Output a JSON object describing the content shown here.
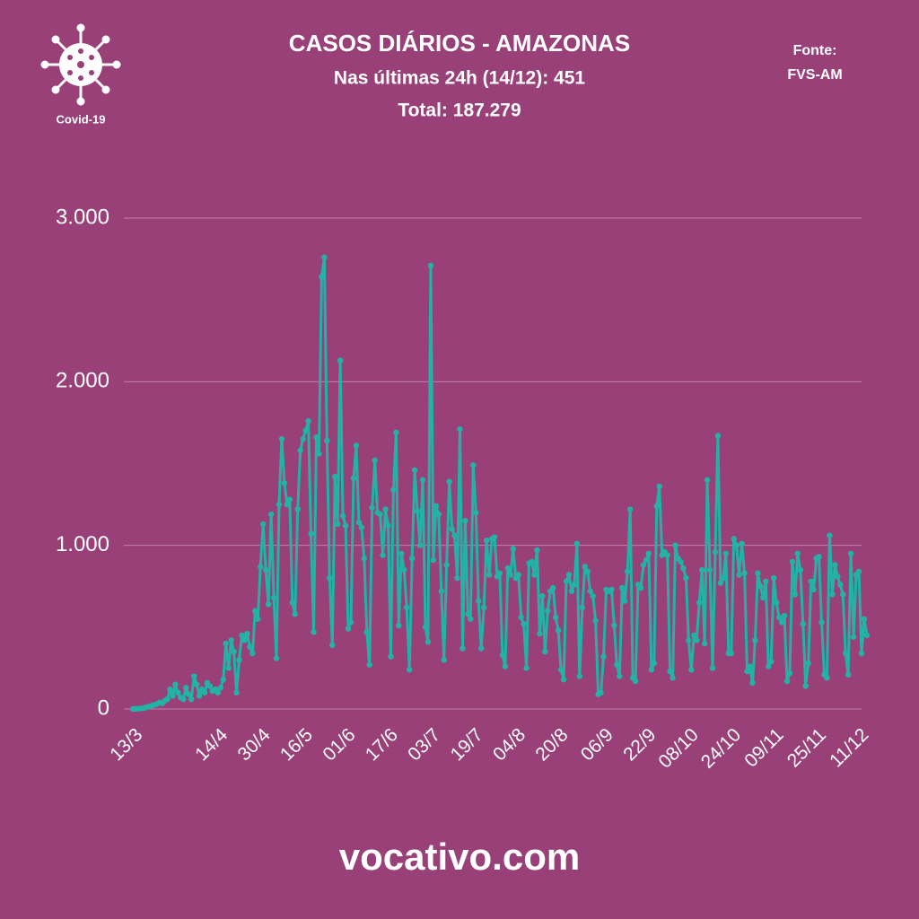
{
  "header": {
    "icon_label": "Covid-19",
    "source_label": "Fonte:",
    "source": "FVS-AM"
  },
  "footer": "vocativo.com",
  "chart_data": {
    "type": "line",
    "title": "CASOS DIÁRIOS - AMAZONAS",
    "subtitle": "Nas últimas 24h (14/12): 451",
    "total": "Total: 187.279",
    "categories": [
      "13/3",
      null,
      null,
      null,
      null,
      null,
      null,
      null,
      null,
      null,
      null,
      null,
      null,
      null,
      null,
      null,
      null,
      null,
      null,
      null,
      null,
      null,
      null,
      null,
      null,
      null,
      null,
      null,
      null,
      null,
      null,
      null,
      "14/4",
      null,
      null,
      null,
      null,
      null,
      null,
      null,
      null,
      null,
      null,
      null,
      null,
      null,
      null,
      null,
      "30/4",
      null,
      null,
      null,
      null,
      null,
      null,
      null,
      null,
      null,
      null,
      null,
      null,
      null,
      null,
      null,
      "16/5",
      null,
      null,
      null,
      null,
      null,
      null,
      null,
      null,
      null,
      null,
      null,
      null,
      null,
      null,
      null,
      "01/6",
      null,
      null,
      null,
      null,
      null,
      null,
      null,
      null,
      null,
      null,
      null,
      null,
      null,
      null,
      null,
      "17/6",
      null,
      null,
      null,
      null,
      null,
      null,
      null,
      null,
      null,
      null,
      null,
      null,
      null,
      null,
      null,
      "03/7",
      null,
      null,
      null,
      null,
      null,
      null,
      null,
      null,
      null,
      null,
      null,
      null,
      null,
      null,
      null,
      "19/7",
      null,
      null,
      null,
      null,
      null,
      null,
      null,
      null,
      null,
      null,
      null,
      null,
      null,
      null,
      null,
      "04/8",
      null,
      null,
      null,
      null,
      null,
      null,
      null,
      null,
      null,
      null,
      null,
      null,
      null,
      null,
      null,
      "20/8",
      null,
      null,
      null,
      null,
      null,
      null,
      null,
      null,
      null,
      null,
      null,
      null,
      null,
      null,
      null,
      null,
      "06/9",
      null,
      null,
      null,
      null,
      null,
      null,
      null,
      null,
      null,
      null,
      null,
      null,
      null,
      null,
      null,
      "22/9",
      null,
      null,
      null,
      null,
      null,
      null,
      null,
      null,
      null,
      null,
      null,
      null,
      null,
      null,
      null,
      "08/10",
      null,
      null,
      null,
      null,
      null,
      null,
      null,
      null,
      null,
      null,
      null,
      null,
      null,
      null,
      null,
      "24/10",
      null,
      null,
      null,
      null,
      null,
      null,
      null,
      null,
      null,
      null,
      null,
      null,
      null,
      null,
      null,
      "09/11",
      null,
      null,
      null,
      null,
      null,
      null,
      null,
      null,
      null,
      null,
      null,
      null,
      null,
      null,
      null,
      "25/11",
      null,
      null,
      null,
      null,
      null,
      null,
      null,
      null,
      null,
      null,
      null,
      null,
      null,
      null,
      null,
      "11/12",
      null,
      null,
      null
    ],
    "values": [
      0,
      1,
      2,
      3,
      5,
      10,
      15,
      20,
      25,
      30,
      40,
      35,
      50,
      60,
      120,
      80,
      150,
      100,
      70,
      60,
      130,
      90,
      60,
      200,
      150,
      80,
      120,
      100,
      160,
      140,
      110,
      120,
      100,
      130,
      180,
      400,
      250,
      420,
      350,
      100,
      300,
      450,
      420,
      460,
      380,
      340,
      600,
      550,
      870,
      1130,
      850,
      640,
      1190,
      680,
      310,
      1250,
      1650,
      1380,
      1250,
      1280,
      650,
      580,
      1220,
      1580,
      1650,
      1700,
      1760,
      1070,
      470,
      1660,
      1560,
      2640,
      2760,
      1640,
      800,
      390,
      1420,
      1130,
      2130,
      1180,
      1120,
      490,
      530,
      1410,
      1610,
      1140,
      1110,
      920,
      470,
      270,
      1230,
      1520,
      1200,
      1190,
      940,
      1220,
      1120,
      320,
      1340,
      1690,
      510,
      950,
      850,
      620,
      240,
      920,
      1460,
      1210,
      1000,
      1400,
      500,
      410,
      2710,
      910,
      1240,
      1190,
      720,
      300,
      880,
      1390,
      1100,
      1060,
      800,
      1710,
      370,
      1150,
      580,
      550,
      1490,
      1200,
      660,
      370,
      620,
      1030,
      820,
      1040,
      1050,
      810,
      830,
      330,
      260,
      860,
      820,
      980,
      800,
      820,
      560,
      520,
      250,
      890,
      900,
      820,
      970,
      460,
      690,
      350,
      600,
      720,
      740,
      560,
      480,
      240,
      180,
      780,
      820,
      720,
      760,
      1010,
      200,
      620,
      870,
      840,
      720,
      690,
      540,
      90,
      100,
      320,
      730,
      720,
      730,
      510,
      270,
      200,
      740,
      660,
      840,
      1220,
      190,
      170,
      760,
      740,
      880,
      910,
      950,
      240,
      280,
      1240,
      1360,
      940,
      960,
      940,
      230,
      190,
      1000,
      920,
      900,
      860,
      800,
      420,
      240,
      450,
      420,
      650,
      850,
      400,
      1400,
      850,
      250,
      960,
      1670,
      770,
      800,
      950,
      340,
      340,
      1040,
      1000,
      820,
      1010,
      830,
      230,
      260,
      160,
      420,
      830,
      750,
      680,
      780,
      260,
      290,
      800,
      650,
      560,
      530,
      570,
      170,
      220,
      900,
      700,
      950,
      850,
      520,
      140,
      280,
      780,
      730,
      920,
      930,
      530,
      210,
      190,
      1060,
      700,
      880,
      810,
      760,
      700,
      340,
      210,
      950,
      440,
      820,
      840,
      340,
      550,
      451
    ],
    "color": "#22b2a6",
    "ylim": [
      0,
      3000
    ],
    "yticks": [
      0,
      {
        "value": 1000,
        "label": "1.000"
      },
      {
        "value": 2000,
        "label": "2.000"
      },
      {
        "value": 3000,
        "label": "3.000"
      }
    ],
    "grid": true
  }
}
